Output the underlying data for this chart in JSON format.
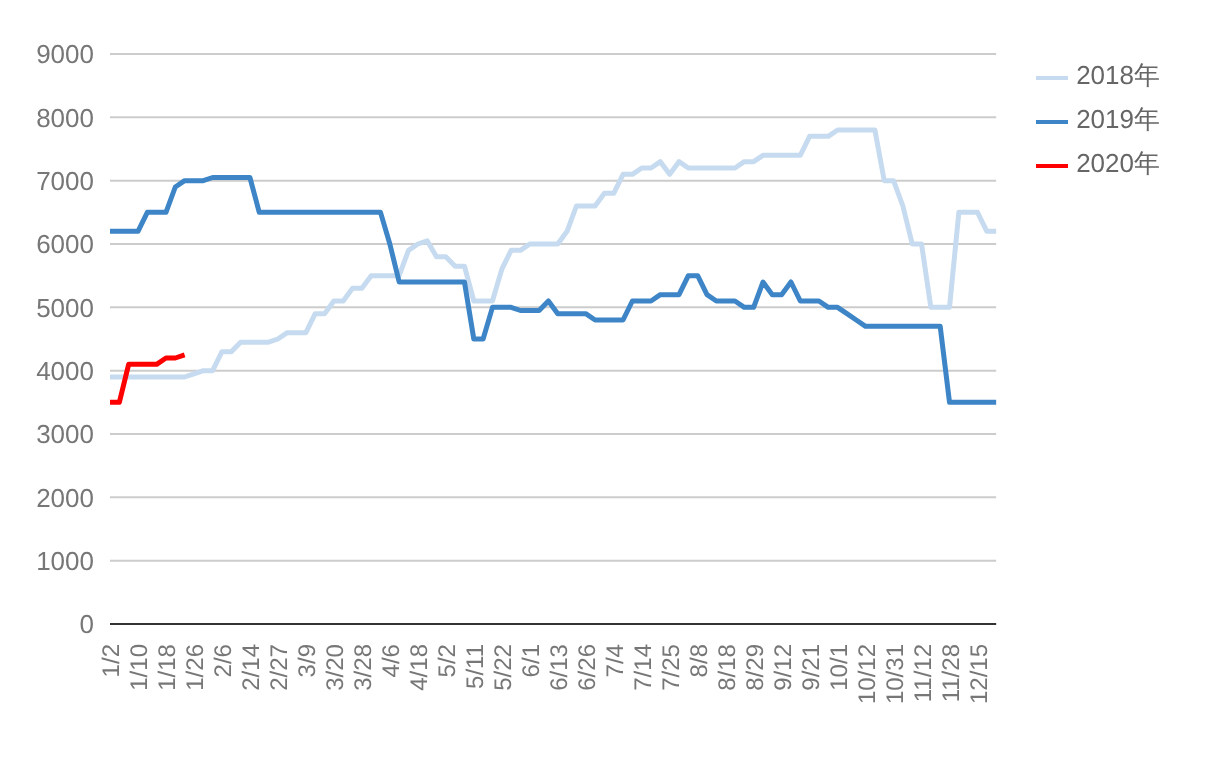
{
  "chart_data": {
    "type": "line",
    "categories": [
      "1/2",
      null,
      null,
      "1/10",
      null,
      null,
      "1/18",
      null,
      null,
      "1/26",
      null,
      null,
      "2/6",
      null,
      null,
      "2/14",
      null,
      null,
      "2/27",
      null,
      null,
      "3/9",
      null,
      null,
      "3/20",
      null,
      null,
      "3/28",
      null,
      null,
      "4/6",
      null,
      null,
      "4/18",
      null,
      null,
      "5/2",
      null,
      null,
      "5/11",
      null,
      null,
      "5/22",
      null,
      null,
      "6/1",
      null,
      null,
      "6/13",
      null,
      null,
      "6/26",
      null,
      null,
      "7/4",
      null,
      null,
      "7/14",
      null,
      null,
      "7/25",
      null,
      null,
      "8/8",
      null,
      null,
      "8/18",
      null,
      null,
      "8/29",
      null,
      null,
      "9/12",
      null,
      null,
      "9/21",
      null,
      null,
      "10/1",
      null,
      null,
      "10/12",
      null,
      null,
      "10/31",
      null,
      null,
      "11/12",
      null,
      null,
      "11/28",
      null,
      null,
      "12/15",
      null,
      null
    ],
    "series": [
      {
        "name": "2018年",
        "color": "#c6dbef",
        "values": [
          3900,
          3900,
          3900,
          3900,
          3900,
          3900,
          3900,
          3900,
          3900,
          3950,
          4000,
          4000,
          4300,
          4300,
          4450,
          4450,
          4450,
          4450,
          4500,
          4600,
          4600,
          4600,
          4900,
          4900,
          5100,
          5100,
          5300,
          5300,
          5500,
          5500,
          5500,
          5500,
          5900,
          6000,
          6050,
          5800,
          5800,
          5650,
          5650,
          5100,
          5100,
          5100,
          5600,
          5900,
          5900,
          6000,
          6000,
          6000,
          6000,
          6200,
          6600,
          6600,
          6600,
          6800,
          6800,
          7100,
          7100,
          7200,
          7200,
          7300,
          7100,
          7300,
          7200,
          7200,
          7200,
          7200,
          7200,
          7200,
          7300,
          7300,
          7400,
          7400,
          7400,
          7400,
          7400,
          7700,
          7700,
          7700,
          7800,
          7800,
          7800,
          7800,
          7800,
          7000,
          7000,
          6600,
          6000,
          6000,
          5000,
          5000,
          5000,
          6500,
          6500,
          6500,
          6200,
          6200
        ]
      },
      {
        "name": "2019年",
        "color": "#3d85c6",
        "values": [
          6200,
          6200,
          6200,
          6200,
          6500,
          6500,
          6500,
          6900,
          7000,
          7000,
          7000,
          7050,
          7050,
          7050,
          7050,
          7050,
          6500,
          6500,
          6500,
          6500,
          6500,
          6500,
          6500,
          6500,
          6500,
          6500,
          6500,
          6500,
          6500,
          6500,
          6000,
          5400,
          5400,
          5400,
          5400,
          5400,
          5400,
          5400,
          5400,
          4500,
          4500,
          5000,
          5000,
          5000,
          4950,
          4950,
          4950,
          5100,
          4900,
          4900,
          4900,
          4900,
          4800,
          4800,
          4800,
          4800,
          5100,
          5100,
          5100,
          5200,
          5200,
          5200,
          5500,
          5500,
          5200,
          5100,
          5100,
          5100,
          5000,
          5000,
          5400,
          5200,
          5200,
          5400,
          5100,
          5100,
          5100,
          5000,
          5000,
          4900,
          4800,
          4700,
          4700,
          4700,
          4700,
          4700,
          4700,
          4700,
          4700,
          4700,
          3500,
          3500,
          3500,
          3500,
          3500,
          3500
        ]
      },
      {
        "name": "2020年",
        "color": "#ff0000",
        "values": [
          3500,
          3500,
          4100,
          4100,
          4100,
          4100,
          4200,
          4200,
          4250,
          null,
          null,
          null,
          null,
          null,
          null,
          null,
          null,
          null,
          null,
          null,
          null,
          null,
          null,
          null,
          null,
          null,
          null,
          null,
          null,
          null,
          null,
          null,
          null,
          null,
          null,
          null,
          null,
          null,
          null,
          null,
          null,
          null,
          null,
          null,
          null,
          null,
          null,
          null,
          null,
          null,
          null,
          null,
          null,
          null,
          null,
          null,
          null,
          null,
          null,
          null,
          null,
          null,
          null,
          null,
          null,
          null,
          null,
          null,
          null,
          null,
          null,
          null,
          null,
          null,
          null,
          null,
          null,
          null,
          null,
          null,
          null,
          null,
          null,
          null,
          null,
          null,
          null,
          null,
          null,
          null,
          null,
          null,
          null,
          null,
          null,
          null
        ]
      }
    ],
    "ylim": [
      0,
      9000
    ],
    "yticks": [
      0,
      1000,
      2000,
      3000,
      4000,
      5000,
      6000,
      7000,
      8000,
      9000
    ],
    "grid": "y",
    "legend": "top right",
    "marker": "none"
  }
}
